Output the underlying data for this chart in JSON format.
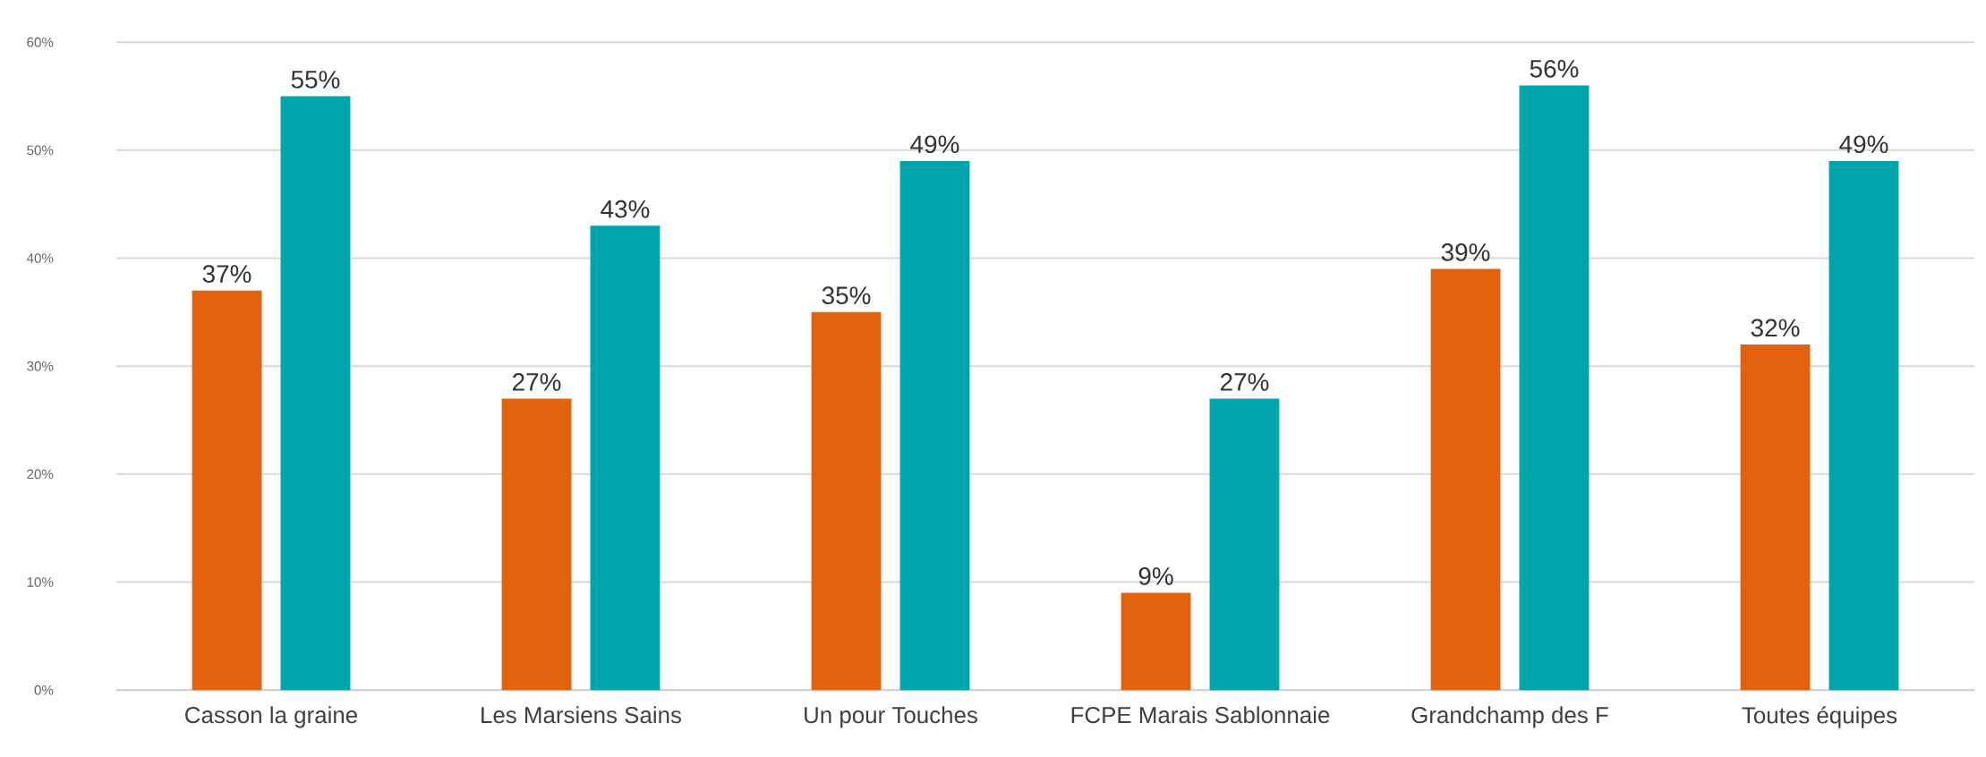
{
  "chart_data": {
    "type": "bar",
    "categories": [
      "Casson la graine",
      "Les Marsiens Sains",
      "Un pour Touches",
      "FCPE Marais Sablonnaie",
      "Grandchamp des F",
      "Toutes équipes"
    ],
    "series": [
      {
        "color": "#e2620e",
        "values": [
          37,
          27,
          35,
          9,
          39,
          32
        ],
        "value_labels": [
          "37%",
          "27%",
          "35%",
          "9%",
          "39%",
          "32%"
        ]
      },
      {
        "color": "#00a5ac",
        "values": [
          55,
          43,
          49,
          27,
          56,
          49
        ],
        "value_labels": [
          "55%",
          "43%",
          "49%",
          "27%",
          "56%",
          "49%"
        ]
      }
    ],
    "ylim": [
      0,
      60
    ],
    "yticks": [
      {
        "value": 0,
        "label": "0%"
      },
      {
        "value": 10,
        "label": "10%"
      },
      {
        "value": 20,
        "label": "20%"
      },
      {
        "value": 30,
        "label": "30%"
      },
      {
        "value": 40,
        "label": "40%"
      },
      {
        "value": 50,
        "label": "50%"
      },
      {
        "value": 60,
        "label": "60%"
      }
    ],
    "grid": "y"
  }
}
